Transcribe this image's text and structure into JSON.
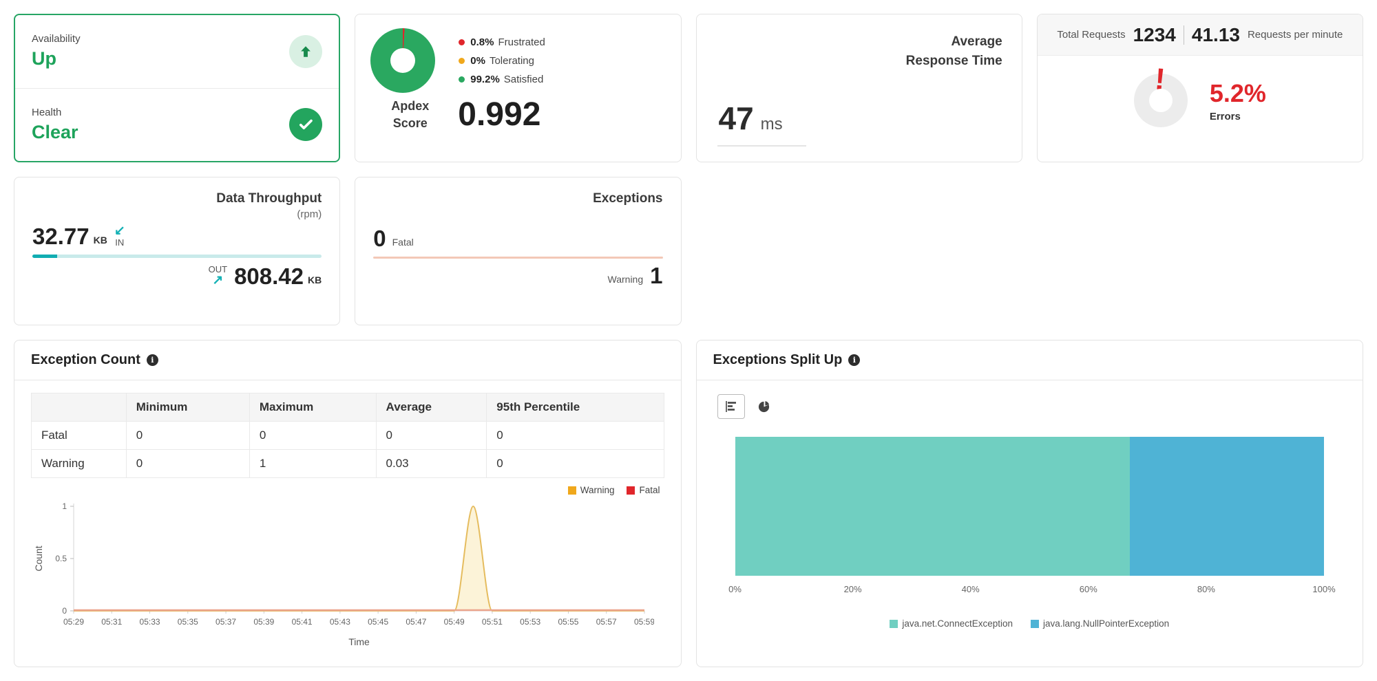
{
  "colors": {
    "green": "#23a55e",
    "light_green_bg": "#d9f0e3",
    "red": "#e0262b",
    "amber": "#f0a81c",
    "teal": "#14b1b5",
    "teal_track": "#c9eaea",
    "salmon_line": "#f3c8b7",
    "mint": "#70cfc1",
    "sky_blue": "#4fb3d5",
    "status_card_border": "#27a565"
  },
  "icons": {
    "info": "i",
    "in_arrow": "↙",
    "out_arrow": "↗"
  },
  "cards": {
    "status": {
      "availability_label": "Availability",
      "availability_value": "Up",
      "health_label": "Health",
      "health_value": "Clear"
    },
    "apdex": {
      "legend": [
        {
          "pct": "0.8%",
          "label": "Frustrated",
          "color": "#e0262b"
        },
        {
          "pct": "0%",
          "label": "Tolerating",
          "color": "#f0a81c"
        },
        {
          "pct": "99.2%",
          "label": "Satisfied",
          "color": "#2aa860"
        }
      ],
      "score_label_1": "Apdex",
      "score_label_2": "Score",
      "score": "0.992"
    },
    "response_time": {
      "title_1": "Average",
      "title_2": "Response Time",
      "value": "47",
      "unit": "ms"
    },
    "requests": {
      "total_label": "Total Requests",
      "total_value": "1234",
      "rpm_value": "41.13",
      "rpm_label": "Requests per minute",
      "error_pct": "5.2%",
      "error_label": "Errors"
    },
    "throughput": {
      "title": "Data Throughput",
      "subtitle": "(rpm)",
      "in_value": "32.77",
      "in_unit": "KB",
      "in_label": "IN",
      "out_label": "OUT",
      "out_value": "808.42",
      "out_unit": "KB"
    },
    "exceptions": {
      "title": "Exceptions",
      "fatal_value": "0",
      "fatal_label": "Fatal",
      "warning_label": "Warning",
      "warning_value": "1"
    }
  },
  "exception_count": {
    "title": "Exception Count",
    "table": {
      "headers": [
        "",
        "Minimum",
        "Maximum",
        "Average",
        "95th Percentile"
      ],
      "rows": [
        [
          "Fatal",
          "0",
          "0",
          "0",
          "0"
        ],
        [
          "Warning",
          "0",
          "1",
          "0.03",
          "0"
        ]
      ]
    },
    "chart_data": {
      "type": "area",
      "x_start": "05:29",
      "x_end": "05:59",
      "x_step_minutes": 1,
      "x_labels": [
        "05:29",
        "05:31",
        "05:33",
        "05:35",
        "05:37",
        "05:39",
        "05:41",
        "05:43",
        "05:45",
        "05:47",
        "05:49",
        "05:51",
        "05:53",
        "05:55",
        "05:57",
        "05:59"
      ],
      "series": [
        {
          "name": "Warning",
          "legend_color": "#f0a81c",
          "line_color": "#e5bc5e",
          "fill_color": "#fcf3d8",
          "values": [
            0,
            0,
            0,
            0,
            0,
            0,
            0,
            0,
            0,
            0,
            0,
            0,
            0,
            0,
            0,
            0,
            0,
            0,
            0,
            0,
            0,
            1,
            0,
            0,
            0,
            0,
            0,
            0,
            0,
            0,
            0
          ]
        },
        {
          "name": "Fatal",
          "legend_color": "#e0262b",
          "line_color": "#eba48c",
          "values": [
            0,
            0,
            0,
            0,
            0,
            0,
            0,
            0,
            0,
            0,
            0,
            0,
            0,
            0,
            0,
            0,
            0,
            0,
            0,
            0,
            0,
            0,
            0,
            0,
            0,
            0,
            0,
            0,
            0,
            0,
            0
          ]
        }
      ],
      "ylabel": "Count",
      "xlabel": "Time",
      "yticks": [
        0,
        0.5,
        1
      ],
      "ylim": [
        0,
        1
      ]
    }
  },
  "exceptions_split": {
    "title": "Exceptions Split Up",
    "chart_data": {
      "type": "stacked-bar-horizontal",
      "segments": [
        {
          "name": "java.net.ConnectException",
          "pct": 67,
          "color": "#70cfc1"
        },
        {
          "name": "java.lang.NullPointerException",
          "pct": 33,
          "color": "#4fb3d5"
        }
      ],
      "x_ticks": [
        "0%",
        "20%",
        "40%",
        "60%",
        "80%",
        "100%"
      ],
      "xlim": [
        0,
        100
      ]
    }
  }
}
